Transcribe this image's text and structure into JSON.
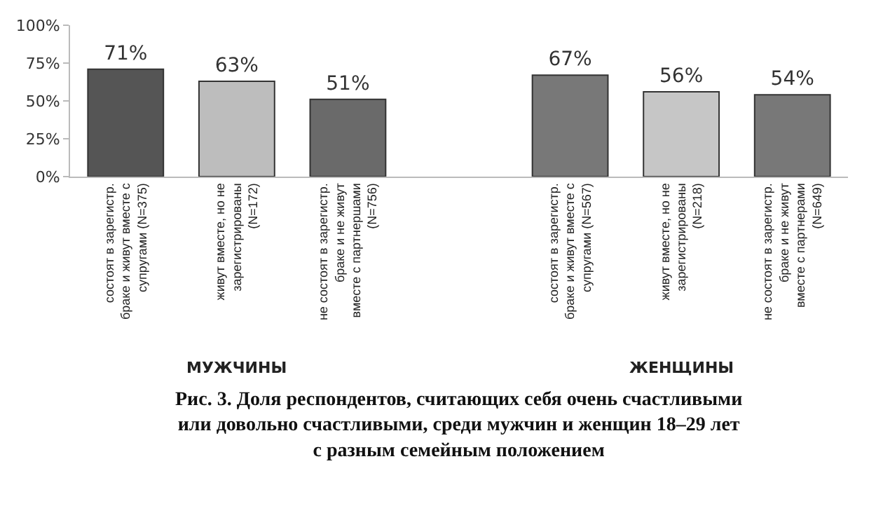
{
  "chart_data": {
    "type": "bar",
    "categories": [
      "состоят в зарегистр.\nбраке и живут вместе с\nсупругами (N=375)",
      "живут вместе, но не\nзарегистрированы\n(N=172)",
      "не состоят в зарегистр.\nбраке и не живут\nвместе с партнершами\n(N=756)",
      null,
      "состоят в зарегистр.\nбраке и живут вместе с\nсупругами (N=567)",
      "живут вместе, но не\nзарегистрированы\n(N=218)",
      "не состоят в зарегистр.\nбраке и не живут\nвместе с партнерами\n(N=649)"
    ],
    "values": [
      71,
      63,
      51,
      null,
      67,
      56,
      54
    ],
    "value_labels": [
      "71%",
      "63%",
      "51%",
      null,
      "67%",
      "56%",
      "54%"
    ],
    "colors": [
      "#555555",
      "#bdbdbd",
      "#6a6a6a",
      "#ffffff",
      "#787878",
      "#c6c6c6",
      "#787878"
    ],
    "ylim": [
      0,
      100
    ],
    "yticks": [
      {
        "value": 0,
        "label": "0%"
      },
      {
        "value": 25,
        "label": "25%"
      },
      {
        "value": 50,
        "label": "50%"
      },
      {
        "value": 75,
        "label": "75%"
      },
      {
        "value": 100,
        "label": "100%"
      }
    ],
    "legend": false,
    "annotations": [
      "МУЖЧИНЫ",
      "ЖЕНЩИНЫ",
      "Рис. 3. Доля респондентов, считающих себя очень счастливыми\nили довольно счастливыми, среди мужчин и женщин 18–29 лет\nс разным семейным положением"
    ]
  }
}
